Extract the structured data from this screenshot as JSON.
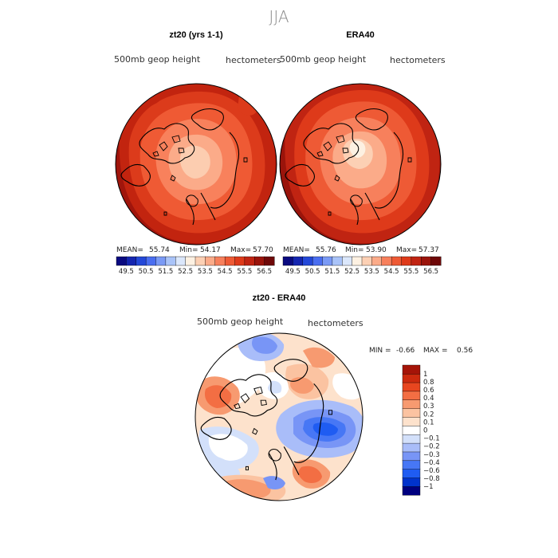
{
  "main_title": "JJA",
  "subtitle_left": "500mb  geop  height",
  "subtitle_right": "hectometers",
  "panels": [
    {
      "id": "model",
      "title": "zt20 (yrs 1-1)",
      "mean_label": "MEAN=",
      "mean_value": "55.74",
      "min_label": "Min=",
      "min_value": "54.17",
      "max_label": "Max=",
      "max_value": "57.70"
    },
    {
      "id": "obs",
      "title": "ERA40",
      "mean_label": "MEAN=",
      "mean_value": "55.76",
      "min_label": "Min=",
      "min_value": "53.90",
      "max_label": "Max=",
      "max_value": "57.37"
    }
  ],
  "diff_panel": {
    "title": "zt20 - ERA40",
    "min_label": "MIN =",
    "min_value": "-0.66",
    "max_label": "MAX =",
    "max_value": "0.56"
  },
  "colorbar_top": {
    "colors": [
      "#0a0a80",
      "#1526b0",
      "#2448d8",
      "#4a6ef0",
      "#7a9af5",
      "#a9c3f8",
      "#dbe7fb",
      "#fdf1e2",
      "#fcd0b4",
      "#fbab89",
      "#f7805c",
      "#ee5a35",
      "#de3a1a",
      "#c02412",
      "#9a140b",
      "#6e0808"
    ],
    "tick_labels": [
      "49.5",
      "50.5",
      "51.5",
      "52.5",
      "53.5",
      "54.5",
      "55.5",
      "56.5"
    ]
  },
  "colorbar_diff": {
    "colors": [
      "#00007f",
      "#0033cc",
      "#1f5cf2",
      "#4777f5",
      "#7895f6",
      "#a9bdf9",
      "#d3e0fa",
      "#ffffff",
      "#fde2cc",
      "#fbc3a1",
      "#f79a70",
      "#f36e43",
      "#e8461f",
      "#cc2a0e",
      "#a51408"
    ],
    "tick_labels": [
      "−1",
      "−0.8",
      "−0.6",
      "−0.4",
      "−0.3",
      "−0.2",
      "−0.1",
      "0",
      "0.1",
      "0.2",
      "0.3",
      "0.4",
      "0.6",
      "0.8",
      "1"
    ]
  }
}
